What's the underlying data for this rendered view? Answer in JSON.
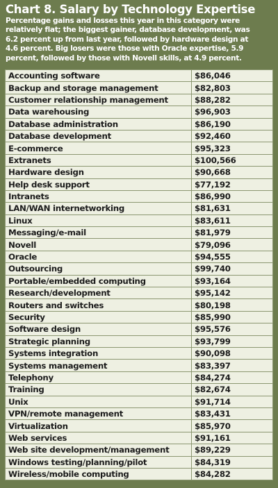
{
  "header": {
    "title": "Chart 8. Salary by Technology Expertise",
    "subtitle": [
      "Percentage gains and losses this year in this category were",
      "relatively flat; the biggest gainer, database development, was",
      "6.2 percent up from last year, followed by hardware design at",
      "4.6 percent. Big losers were those with Oracle expertise, 5.9",
      "percent, followed by those with Novell skills, at 4.9 percent."
    ]
  },
  "table": {
    "rows": [
      [
        "Accounting software",
        "$86,046"
      ],
      [
        "Backup and storage management",
        "$82,803"
      ],
      [
        "Customer relationship management",
        "$88,282"
      ],
      [
        "Data warehousing",
        "$96,903"
      ],
      [
        "Database administration",
        "$86,190"
      ],
      [
        "Database development",
        "$92,460"
      ],
      [
        "E-commerce",
        "$95,323"
      ],
      [
        "Extranets",
        "$100,566"
      ],
      [
        "Hardware design",
        "$90,668"
      ],
      [
        "Help desk support",
        "$77,192"
      ],
      [
        "Intranets",
        "$86,990"
      ],
      [
        "LAN/WAN internetworking",
        "$81,631"
      ],
      [
        "Linux",
        "$83,611"
      ],
      [
        "Messaging/e-mail",
        "$81,979"
      ],
      [
        "Novell",
        "$79,096"
      ],
      [
        "Oracle",
        "$94,555"
      ],
      [
        "Outsourcing",
        "$99,740"
      ],
      [
        "Portable/embedded computing",
        "$93,164"
      ],
      [
        "Research/development",
        "$95,142"
      ],
      [
        "Routers and switches",
        "$80,198"
      ],
      [
        "Security",
        "$85,990"
      ],
      [
        "Software design",
        "$95,576"
      ],
      [
        "Strategic planning",
        "$93,799"
      ],
      [
        "Systems integration",
        "$90,098"
      ],
      [
        "Systems management",
        "$83,397"
      ],
      [
        "Telephony",
        "$84,274"
      ],
      [
        "Training",
        "$82,674"
      ],
      [
        "Unix",
        "$91,714"
      ],
      [
        "VPN/remote management",
        "$83,431"
      ],
      [
        "Virtualization",
        "$85,970"
      ],
      [
        "Web services",
        "$91,161"
      ],
      [
        "Web site development/management",
        "$89,229"
      ],
      [
        "Windows testing/planning/pilot",
        "$84,319"
      ],
      [
        "Wireless/mobile computing",
        "$84,282"
      ]
    ]
  }
}
